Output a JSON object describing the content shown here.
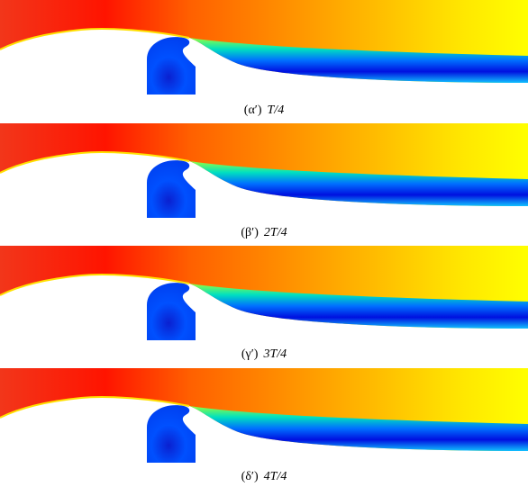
{
  "panels": [
    {
      "label": "(α′)",
      "time": "T/4"
    },
    {
      "label": "(β′)",
      "time": "2T/4"
    },
    {
      "label": "(γ′)",
      "time": "3T/4"
    },
    {
      "label": "(δ′)",
      "time": "4T/4"
    }
  ]
}
